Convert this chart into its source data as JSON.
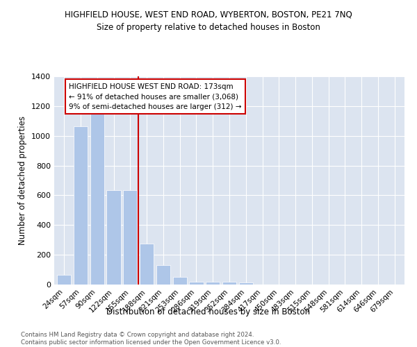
{
  "title": "HIGHFIELD HOUSE, WEST END ROAD, WYBERTON, BOSTON, PE21 7NQ",
  "subtitle": "Size of property relative to detached houses in Boston",
  "xlabel": "Distribution of detached houses by size in Boston",
  "ylabel": "Number of detached properties",
  "categories": [
    "24sqm",
    "57sqm",
    "90sqm",
    "122sqm",
    "155sqm",
    "188sqm",
    "221sqm",
    "253sqm",
    "286sqm",
    "319sqm",
    "352sqm",
    "384sqm",
    "417sqm",
    "450sqm",
    "483sqm",
    "515sqm",
    "548sqm",
    "581sqm",
    "614sqm",
    "646sqm",
    "679sqm"
  ],
  "values": [
    65,
    1065,
    1155,
    635,
    635,
    275,
    130,
    50,
    20,
    20,
    20,
    15,
    0,
    0,
    0,
    0,
    0,
    0,
    0,
    0,
    0
  ],
  "bar_color": "#aec6e8",
  "vline_x": 4.5,
  "vline_color": "#cc0000",
  "annotation_text": "HIGHFIELD HOUSE WEST END ROAD: 173sqm\n← 91% of detached houses are smaller (3,068)\n9% of semi-detached houses are larger (312) →",
  "annotation_box_color": "#ffffff",
  "annotation_box_edge": "#cc0000",
  "ylim": [
    0,
    1400
  ],
  "yticks": [
    0,
    200,
    400,
    600,
    800,
    1000,
    1200,
    1400
  ],
  "plot_bg_color": "#dce4f0",
  "footnote": "Contains HM Land Registry data © Crown copyright and database right 2024.\nContains public sector information licensed under the Open Government Licence v3.0.",
  "title_fontsize": 8.5,
  "subtitle_fontsize": 8.5,
  "xlabel_fontsize": 8.5,
  "ylabel_fontsize": 8.5
}
